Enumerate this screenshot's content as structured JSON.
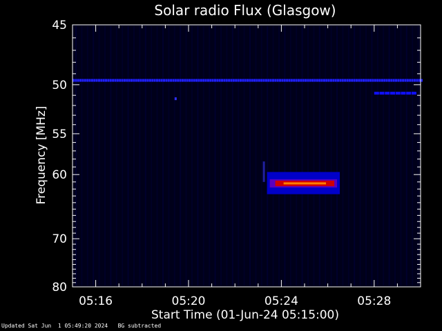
{
  "chart_data": {
    "type": "heatmap",
    "title": "Solar radio Flux (Glasgow)",
    "xlabel": "Start Time (01-Jun-24 05:15:00)",
    "ylabel": "Frequency [MHz]",
    "x_unit": "minutes after 05:15:00",
    "xlim": [
      0,
      15
    ],
    "ylim": [
      45,
      80
    ],
    "y_inverted": true,
    "x_ticks": [
      {
        "label": "05:16",
        "value": 1
      },
      {
        "label": "05:20",
        "value": 5
      },
      {
        "label": "05:24",
        "value": 9
      },
      {
        "label": "05:28",
        "value": 13
      }
    ],
    "y_ticks": [
      45,
      50,
      55,
      60,
      70,
      80
    ],
    "y_scale": "reciprocal",
    "colormap": [
      "#000020",
      "#0000ff",
      "#8000ff",
      "#ff0000",
      "#ff8000"
    ],
    "features": [
      {
        "name": "burst",
        "time_start": 8.5,
        "time_end": 11.4,
        "freq_center": 61.2,
        "freq_halfwidth": 0.7,
        "peak": "red"
      },
      {
        "name": "interference-line",
        "freq": 49.6,
        "time_start": 0,
        "time_end": 15
      },
      {
        "name": "interference-segment",
        "freq": 50.8,
        "time_start": 13.0,
        "time_end": 14.8
      }
    ]
  },
  "footer": {
    "updated": "Updated Sat Jun  1 05:49:20 2024",
    "note": "BG subtracted"
  },
  "colors": {
    "background": "#000000",
    "axis": "#ffffff",
    "plot_background": "#00001a"
  }
}
